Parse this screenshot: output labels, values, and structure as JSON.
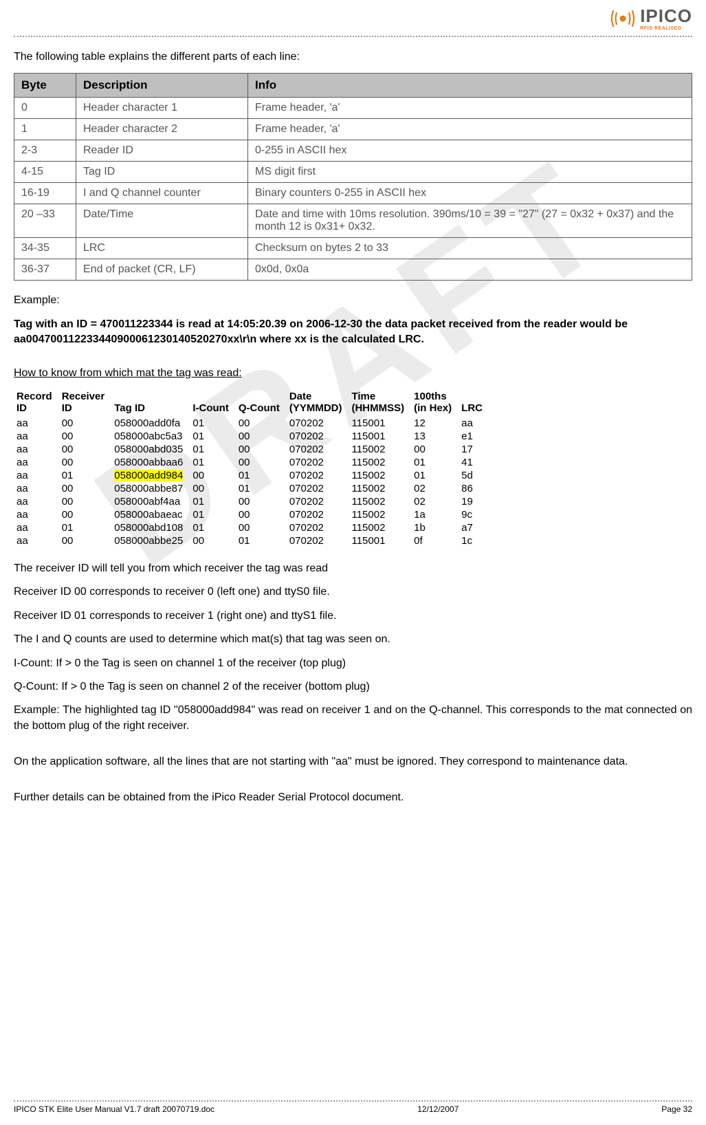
{
  "logo": {
    "name": "IPICO",
    "tagline": "RFID REALISED"
  },
  "intro": "The following table explains the different parts of each line:",
  "byte_table": {
    "columns": [
      "Byte",
      "Description",
      "Info"
    ],
    "rows": [
      [
        "0",
        "Header character 1",
        "Frame header, 'a'"
      ],
      [
        "1",
        "Header character 2",
        "Frame header, 'a'"
      ],
      [
        "2-3",
        "Reader ID",
        "0-255 in ASCII hex"
      ],
      [
        "4-15",
        "Tag ID",
        "MS digit first"
      ],
      [
        "16-19",
        "I and Q channel counter",
        "Binary counters 0-255 in ASCII hex"
      ],
      [
        "20 –33",
        "Date/Time",
        "Date and time with 10ms resolution. 390ms/10 = 39 = \"27\" (27 = 0x32 + 0x37) and the month 12 is 0x31+ 0x32."
      ],
      [
        "34-35",
        "LRC",
        "Checksum on bytes 2 to 33"
      ],
      [
        "36-37",
        "End of packet (CR, LF)",
        "0x0d, 0x0a"
      ]
    ]
  },
  "example_label": "Example:",
  "example_text": "Tag with an ID = 470011223344 is read at 14:05:20.39 on 2006-12-30 the data packet received from the reader would be aa004700112233440900061230140520270xx\\r\\n  where xx is the calculated LRC",
  "section2_title": "How to know from which mat the tag was read:",
  "data_table": {
    "columns": [
      "Record ID",
      "Receiver ID",
      "Tag ID",
      "I-Count",
      "Q-Count",
      "Date (YYMMDD)",
      "Time (HHMMSS)",
      "100ths (in Hex)",
      "LRC"
    ],
    "rows": [
      {
        "vals": [
          "aa",
          "00",
          "058000add0fa",
          "01",
          "00",
          "070202",
          "115001",
          "12",
          "aa"
        ],
        "hl": false
      },
      {
        "vals": [
          "aa",
          "00",
          "058000abc5a3",
          "01",
          "00",
          "070202",
          "115001",
          "13",
          "e1"
        ],
        "hl": false
      },
      {
        "vals": [
          "aa",
          "00",
          "058000abd035",
          "01",
          "00",
          "070202",
          "115002",
          "00",
          "17"
        ],
        "hl": false
      },
      {
        "vals": [
          "aa",
          "00",
          "058000abbaa6",
          "01",
          "00",
          "070202",
          "115002",
          "01",
          "41"
        ],
        "hl": false
      },
      {
        "vals": [
          "aa",
          "01",
          "058000add984",
          "00",
          "01",
          "070202",
          "115002",
          "01",
          "5d"
        ],
        "hl": true
      },
      {
        "vals": [
          "aa",
          "00",
          "058000abbe87",
          "00",
          "01",
          "070202",
          "115002",
          "02",
          "86"
        ],
        "hl": false
      },
      {
        "vals": [
          "aa",
          "00",
          "058000abf4aa",
          "01",
          "00",
          "070202",
          "115002",
          "02",
          "19"
        ],
        "hl": false
      },
      {
        "vals": [
          "aa",
          "00",
          "058000abaeac",
          "01",
          "00",
          "070202",
          "115002",
          "1a",
          "9c"
        ],
        "hl": false
      },
      {
        "vals": [
          "aa",
          "01",
          "058000abd108",
          "01",
          "00",
          "070202",
          "115002",
          "1b",
          "a7"
        ],
        "hl": false
      },
      {
        "vals": [
          "aa",
          "00",
          "058000abbe25",
          "00",
          "01",
          "070202",
          "115001",
          "0f",
          "1c"
        ],
        "hl": false
      }
    ],
    "highlight_bg": "#ffff00",
    "highlight_col_index": 2
  },
  "paras": [
    "The receiver ID will tell you from which receiver the tag was read",
    "Receiver ID 00 corresponds to receiver 0 (left one) and ttyS0 file.",
    "Receiver ID 01 corresponds to receiver 1 (right one) and ttyS1 file.",
    "The I and Q counts are used to determine which mat(s) that tag was seen on.",
    "I-Count: If > 0 the Tag is seen on channel 1 of the receiver (top plug)",
    "Q-Count: If > 0 the Tag is seen on channel 2 of the receiver (bottom plug)",
    "Example: The highlighted tag ID \"058000add984\" was read on receiver 1 and on the Q-channel. This corresponds to the mat connected on the bottom plug of the right receiver.",
    "On the application software, all the lines that are not starting with \"aa\" must be ignored. They correspond to maintenance data.",
    "Further details can be obtained from the iPico Reader Serial Protocol document."
  ],
  "paras_justify_indices": [
    6,
    7
  ],
  "paras_gap_before_indices": [
    7,
    8
  ],
  "footer": {
    "left": "IPICO STK Elite User Manual V1.7 draft 20070719.doc",
    "center": "12/12/2007",
    "right": "Page 32"
  },
  "watermark": "DRAFT"
}
